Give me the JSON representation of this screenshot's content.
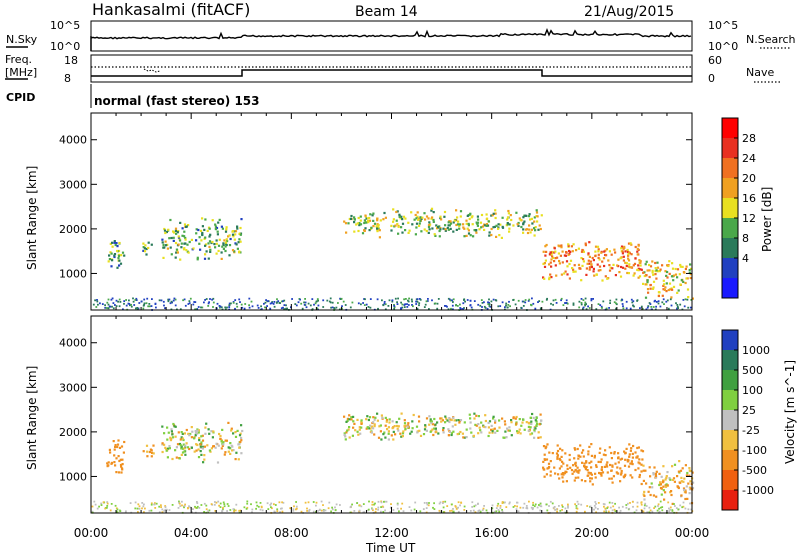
{
  "header": {
    "station": "Hankasalmi (fitACF)",
    "beam": "Beam 14",
    "date": "21/Aug/2015"
  },
  "noise_panel": {
    "left_label": "N.Sky",
    "right_label": "N.Search",
    "tick_high": "10^5",
    "tick_low": "10^0"
  },
  "freq_panel": {
    "left_label_1": "Freq.",
    "left_label_2": "[MHz]",
    "left_tick_high": "18",
    "left_tick_low": "8",
    "right_label": "Nave",
    "right_tick_high": "60",
    "right_tick_low": "0"
  },
  "cpid_panel": {
    "label": "CPID",
    "mode": "normal (fast stereo) 153"
  },
  "x_axis": {
    "label": "Time UT",
    "ticks": [
      "00:00",
      "04:00",
      "08:00",
      "12:00",
      "16:00",
      "20:00",
      "00:00"
    ]
  },
  "power_panel": {
    "ylabel": "Slant Range [km]",
    "yticks": [
      "1000",
      "2000",
      "3000",
      "4000"
    ],
    "cbar_label": "Power [dB]",
    "cbar_ticks": [
      "4",
      "8",
      "12",
      "16",
      "20",
      "24",
      "28"
    ],
    "cbar_colors": [
      "#1a1aff",
      "#2040c0",
      "#2a7a5a",
      "#4aa84a",
      "#e8e020",
      "#f0a020",
      "#f07020",
      "#e83020",
      "#ff0000"
    ]
  },
  "velocity_panel": {
    "ylabel": "Slant Range [km]",
    "yticks": [
      "1000",
      "2000",
      "3000",
      "4000"
    ],
    "cbar_label": "Velocity [m s^-1]",
    "cbar_ticks": [
      "1000",
      "500",
      "100",
      "25",
      "-25",
      "-100",
      "-500",
      "-1000"
    ],
    "cbar_colors": [
      "#2040c0",
      "#2a7a5a",
      "#40a040",
      "#80d040",
      "#c0c0c0",
      "#f0c040",
      "#f09020",
      "#f06010",
      "#e82010"
    ]
  },
  "chart_data": {
    "type": "heatmap",
    "title": "Hankasalmi (fitACF)  Beam 14  21/Aug/2015",
    "xlabel": "Time UT",
    "ylabel": "Slant Range [km]",
    "xlim_hours": [
      0,
      24
    ],
    "ylim_km": [
      180,
      4600
    ],
    "cpid_mode_change_hours": [
      6,
      18
    ],
    "echo_regions": [
      {
        "t_start": 0.6,
        "t_end": 1.3,
        "r_min": 1000,
        "r_max": 1900,
        "power_db": 12,
        "velocity": -200
      },
      {
        "t_start": 2.0,
        "t_end": 2.5,
        "r_min": 1400,
        "r_max": 1800,
        "power_db": 12,
        "velocity": -200
      },
      {
        "t_start": 2.8,
        "t_end": 6.0,
        "r_min": 1300,
        "r_max": 2300,
        "power_db": 14,
        "velocity": 0
      },
      {
        "t_start": 10.0,
        "t_end": 18.0,
        "r_min": 1800,
        "r_max": 2500,
        "power_db": 16,
        "velocity": 0
      },
      {
        "t_start": 18.0,
        "t_end": 22.0,
        "r_min": 800,
        "r_max": 1800,
        "power_db": 24,
        "velocity": -300
      },
      {
        "t_start": 22.0,
        "t_end": 24.0,
        "r_min": 400,
        "r_max": 1400,
        "power_db": 20,
        "velocity": -100
      }
    ]
  }
}
